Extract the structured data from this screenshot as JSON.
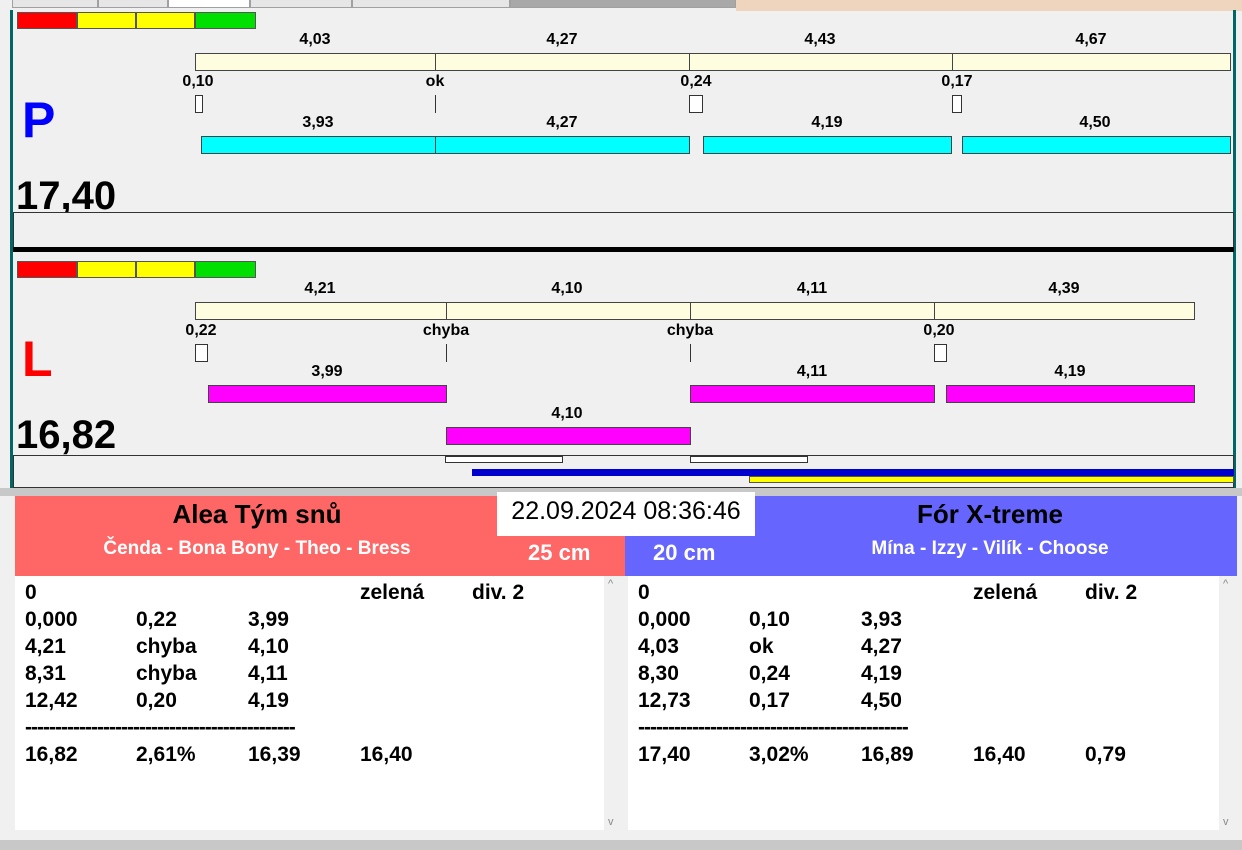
{
  "colors": {
    "red": "#ff0000",
    "yellow": "#ffff00",
    "green": "#00e000",
    "lane_p": "#0000ff",
    "lane_l": "#ff0000",
    "team_left": "#ff6666",
    "team_right": "#6666ff",
    "cream": "#fefde0",
    "cyan": "#00ffff",
    "magenta": "#ff00ff",
    "blue_line": "#0000cc",
    "yellow_line": "#ffff00"
  },
  "lane_p": {
    "letter": "P",
    "total": "17,40",
    "top_times": [
      "4,03",
      "4,27",
      "4,43",
      "4,67"
    ],
    "reactions": [
      "0,10",
      "ok",
      "0,24",
      "0,17"
    ],
    "bottom_times": [
      "3,93",
      "4,27",
      "4,19",
      "4,50"
    ]
  },
  "lane_l": {
    "letter": "L",
    "total": "16,82",
    "top_times": [
      "4,21",
      "4,10",
      "4,11",
      "4,39"
    ],
    "reactions": [
      "0,22",
      "chyba",
      "chyba",
      "0,20"
    ],
    "bottom_times": [
      "3,99",
      "4,11",
      "4,19"
    ],
    "extra_time": "4,10"
  },
  "datetime": "22.09.2024 08:36:46",
  "team_left": {
    "name": "Alea Tým snů",
    "members": "Čenda - Bona Bony - Theo - Bress",
    "cm": "25 cm",
    "header": [
      "0",
      "",
      "",
      "zelená",
      "div. 2"
    ],
    "rows": [
      [
        "0,000",
        "0,22",
        "3,99"
      ],
      [
        "4,21",
        "chyba",
        "4,10"
      ],
      [
        "8,31",
        "chyba",
        "4,11"
      ],
      [
        "12,42",
        "0,20",
        "4,19"
      ]
    ],
    "dashes": "---------------------------------------------",
    "summary": [
      "16,82",
      "2,61%",
      "16,39",
      "16,40",
      ""
    ]
  },
  "team_right": {
    "name": "Fór X-treme",
    "members": "Mína - Izzy - Vilík - Choose",
    "cm": "20 cm",
    "header": [
      "0",
      "",
      "",
      "zelená",
      "div. 2"
    ],
    "rows": [
      [
        "0,000",
        "0,10",
        "3,93"
      ],
      [
        "4,03",
        "ok",
        "4,27"
      ],
      [
        "8,30",
        "0,24",
        "4,19"
      ],
      [
        "12,73",
        "0,17",
        "4,50"
      ]
    ],
    "dashes": "---------------------------------------------",
    "summary": [
      "17,40",
      "3,02%",
      "16,89",
      "16,40",
      "0,79"
    ]
  }
}
